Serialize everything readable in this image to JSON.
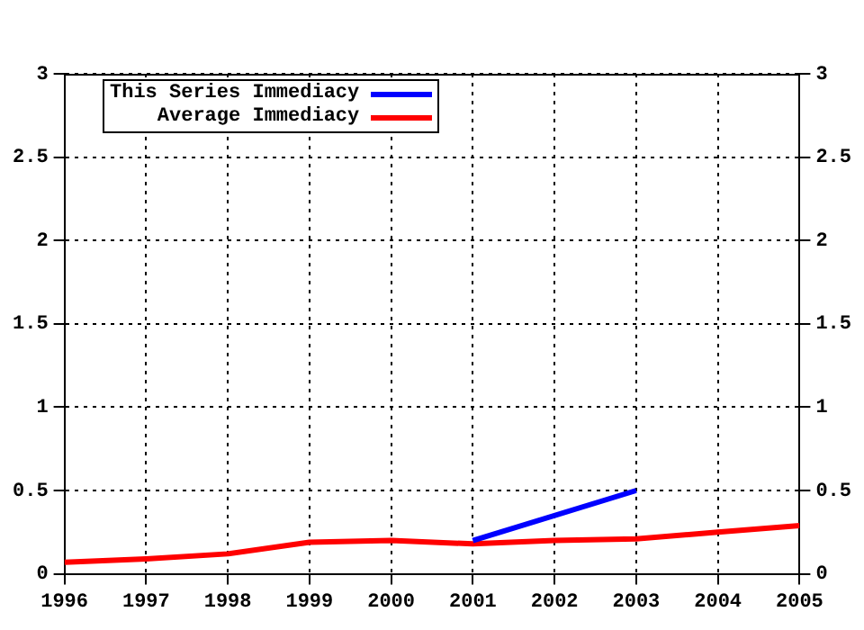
{
  "chart_data": {
    "type": "line",
    "x": [
      1996,
      1997,
      1998,
      1999,
      2000,
      2001,
      2002,
      2003,
      2004,
      2005
    ],
    "series": [
      {
        "name": "This Series Immediacy",
        "color": "#0000ff",
        "x": [
          2001,
          2003
        ],
        "values": [
          0.2,
          0.5
        ]
      },
      {
        "name": "Average Immediacy",
        "color": "#ff0000",
        "values": [
          0.07,
          0.09,
          0.12,
          0.19,
          0.2,
          0.18,
          0.2,
          0.21,
          0.25,
          0.29
        ]
      }
    ],
    "xlim": [
      1996,
      2005
    ],
    "xticks": [
      1996,
      1997,
      1998,
      1999,
      2000,
      2001,
      2002,
      2003,
      2004,
      2005
    ],
    "ylim": [
      0,
      3
    ],
    "yticks": [
      0,
      0.5,
      1,
      1.5,
      2,
      2.5,
      3
    ],
    "y2lim": [
      0,
      3
    ],
    "y2ticks": [
      0,
      0.5,
      1,
      1.5,
      2,
      2.5,
      3
    ],
    "grid": true,
    "legend": "top left",
    "marker": "none",
    "line_style": "solid"
  }
}
